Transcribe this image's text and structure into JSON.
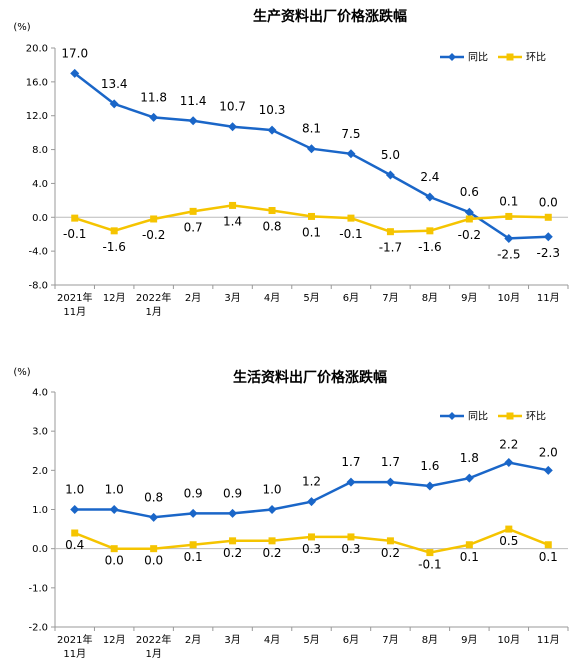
{
  "chart_data": [
    {
      "type": "line",
      "title": "生产资料出厂价格涨跌幅",
      "unit_label": "(%)",
      "categories": [
        "2021年\n11月",
        "12月",
        "2022年\n1月",
        "2月",
        "3月",
        "4月",
        "5月",
        "6月",
        "7月",
        "8月",
        "9月",
        "10月",
        "11月"
      ],
      "y_ticks": [
        "20.0",
        "16.0",
        "12.0",
        "8.0",
        "4.0",
        "0.0",
        "-4.0",
        "-8.0"
      ],
      "ylim": [
        -8,
        20
      ],
      "legend_position": "top-right",
      "grid": false,
      "series": [
        {
          "name": "同比",
          "color": "#1a66c8",
          "marker": "diamond",
          "values": [
            17.0,
            13.4,
            11.8,
            11.4,
            10.7,
            10.3,
            8.1,
            7.5,
            5.0,
            2.4,
            0.6,
            -2.5,
            -2.3
          ],
          "labels": [
            "17.0",
            "13.4",
            "11.8",
            "11.4",
            "10.7",
            "10.3",
            "8.1",
            "7.5",
            "5.0",
            "2.4",
            "0.6",
            "-2.5",
            "-2.3"
          ]
        },
        {
          "name": "环比",
          "color": "#f5c400",
          "marker": "square",
          "values": [
            -0.1,
            -1.6,
            -0.2,
            0.7,
            1.4,
            0.8,
            0.1,
            -0.1,
            -1.7,
            -1.6,
            -0.2,
            0.1,
            0.0
          ],
          "labels": [
            "-0.1",
            "-1.6",
            "-0.2",
            "0.7",
            "1.4",
            "0.8",
            "0.1",
            "-0.1",
            "-1.7",
            "-1.6",
            "-0.2",
            "0.1",
            "0.0"
          ]
        }
      ]
    },
    {
      "type": "line",
      "title": "生活资料出厂价格涨跌幅",
      "unit_label": "(%)",
      "categories": [
        "2021年\n11月",
        "12月",
        "2022年\n1月",
        "2月",
        "3月",
        "4月",
        "5月",
        "6月",
        "7月",
        "8月",
        "9月",
        "10月",
        "11月"
      ],
      "y_ticks": [
        "4.0",
        "3.0",
        "2.0",
        "1.0",
        "0.0",
        "-1.0",
        "-2.0"
      ],
      "ylim": [
        -2,
        4
      ],
      "legend_position": "top-right",
      "grid": false,
      "series": [
        {
          "name": "同比",
          "color": "#1a66c8",
          "marker": "diamond",
          "values": [
            1.0,
            1.0,
            0.8,
            0.9,
            0.9,
            1.0,
            1.2,
            1.7,
            1.7,
            1.6,
            1.8,
            2.2,
            2.0
          ],
          "labels": [
            "1.0",
            "1.0",
            "0.8",
            "0.9",
            "0.9",
            "1.0",
            "1.2",
            "1.7",
            "1.7",
            "1.6",
            "1.8",
            "2.2",
            "2.0"
          ]
        },
        {
          "name": "环比",
          "color": "#f5c400",
          "marker": "square",
          "values": [
            0.4,
            0.0,
            0.0,
            0.1,
            0.2,
            0.2,
            0.3,
            0.3,
            0.2,
            -0.1,
            0.1,
            0.5,
            0.1
          ],
          "labels": [
            "0.4",
            "0.0",
            "0.0",
            "0.1",
            "0.2",
            "0.2",
            "0.3",
            "0.3",
            "0.2",
            "-0.1",
            "0.1",
            "0.5",
            "0.1"
          ]
        }
      ]
    }
  ]
}
